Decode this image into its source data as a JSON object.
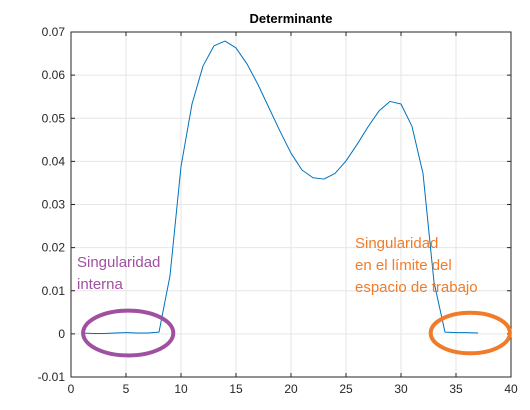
{
  "chart_data": {
    "type": "line",
    "title": "Determinante",
    "xlabel": "",
    "ylabel": "",
    "xlim": [
      0,
      40
    ],
    "ylim": [
      -0.01,
      0.07
    ],
    "xticks": [
      0,
      5,
      10,
      15,
      20,
      25,
      30,
      35,
      40
    ],
    "yticks": [
      -0.01,
      0,
      0.01,
      0.02,
      0.03,
      0.04,
      0.05,
      0.06,
      0.07
    ],
    "grid": true,
    "series": [
      {
        "color": "#0072BD",
        "x": [
          1,
          2,
          3,
          4,
          5,
          6,
          7,
          8,
          9,
          10,
          11,
          12,
          13,
          14,
          15,
          16,
          17,
          18,
          19,
          20,
          21,
          22,
          23,
          24,
          25,
          26,
          27,
          28,
          29,
          30,
          31,
          32,
          33,
          34,
          35,
          36,
          37
        ],
        "y": [
          0.0002,
          0.0001,
          0.0001,
          0.0002,
          0.0003,
          0.0002,
          0.0002,
          0.0004,
          0.0135,
          0.0388,
          0.0533,
          0.0621,
          0.0668,
          0.0679,
          0.0663,
          0.0626,
          0.0578,
          0.0524,
          0.047,
          0.0419,
          0.038,
          0.0362,
          0.0359,
          0.0372,
          0.0401,
          0.0439,
          0.048,
          0.0517,
          0.0539,
          0.0533,
          0.0481,
          0.0372,
          0.012,
          0.0004,
          0.0003,
          0.0003,
          0.0002
        ]
      }
    ],
    "annotations": [
      {
        "lines": [
          "Singularidad",
          "interna"
        ],
        "color": "#A050A0",
        "ellipse": {
          "cx": 5.2,
          "cy": 0.0002,
          "rx": 4.1,
          "ry": 0.0052
        }
      },
      {
        "lines": [
          "Singularidad",
          "en el límite del",
          "espacio de trabajo"
        ],
        "color": "#F07C2A",
        "ellipse": {
          "cx": 36.3,
          "cy": 0.0002,
          "rx": 3.6,
          "ry": 0.0047
        }
      }
    ]
  }
}
